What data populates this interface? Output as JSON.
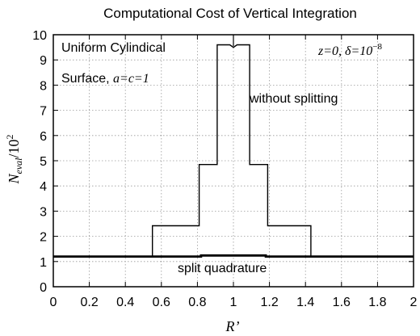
{
  "chart_data": {
    "type": "line",
    "title": "Computational Cost of Vertical Integration",
    "xlabel": "R’",
    "ylabel": {
      "main": "N",
      "sub": "eval",
      "rest": "/10",
      "sup": "2"
    },
    "xlim": [
      0,
      2
    ],
    "ylim": [
      0,
      10
    ],
    "xticks": [
      0,
      0.2,
      0.4,
      0.6,
      0.8,
      1,
      1.2,
      1.4,
      1.6,
      1.8,
      2
    ],
    "xtick_labels": [
      "0",
      "0.2",
      "0.4",
      "0.6",
      "0.8",
      "1",
      "1.2",
      "1.4",
      "1.6",
      "1.8",
      "2"
    ],
    "yticks": [
      0,
      1,
      2,
      3,
      4,
      5,
      6,
      7,
      8,
      9,
      10
    ],
    "ytick_labels": [
      "0",
      "1",
      "2",
      "3",
      "4",
      "5",
      "6",
      "7",
      "8",
      "9",
      "10"
    ],
    "grid": true,
    "annotations": {
      "surface_line1": "Uniform Cylindical",
      "surface_line2_prefix": "Surface, ",
      "surface_params": "a=c=1",
      "z_param": "z=0, δ=10",
      "z_param_exp": "−8",
      "without_label": "without splitting",
      "split_label": "split quadrature"
    },
    "series": [
      {
        "label_key": "without_label",
        "points": [
          [
            0,
            1.2
          ],
          [
            0.55,
            1.2
          ],
          [
            0.55,
            2.42
          ],
          [
            0.81,
            2.42
          ],
          [
            0.81,
            4.85
          ],
          [
            0.91,
            4.85
          ],
          [
            0.91,
            9.6
          ],
          [
            0.98,
            9.6
          ],
          [
            1.0,
            9.5
          ],
          [
            1.02,
            9.6
          ],
          [
            1.09,
            9.6
          ],
          [
            1.09,
            4.85
          ],
          [
            1.19,
            4.85
          ],
          [
            1.19,
            2.42
          ],
          [
            1.43,
            2.42
          ],
          [
            1.43,
            1.2
          ],
          [
            2.0,
            1.2
          ]
        ]
      },
      {
        "label_key": "split_label",
        "points": [
          [
            0,
            1.2
          ],
          [
            0.82,
            1.2
          ],
          [
            0.82,
            1.24
          ],
          [
            1.18,
            1.24
          ],
          [
            1.18,
            1.2
          ],
          [
            2.0,
            1.2
          ]
        ]
      }
    ],
    "marker_at": [
      1.0,
      10
    ]
  }
}
